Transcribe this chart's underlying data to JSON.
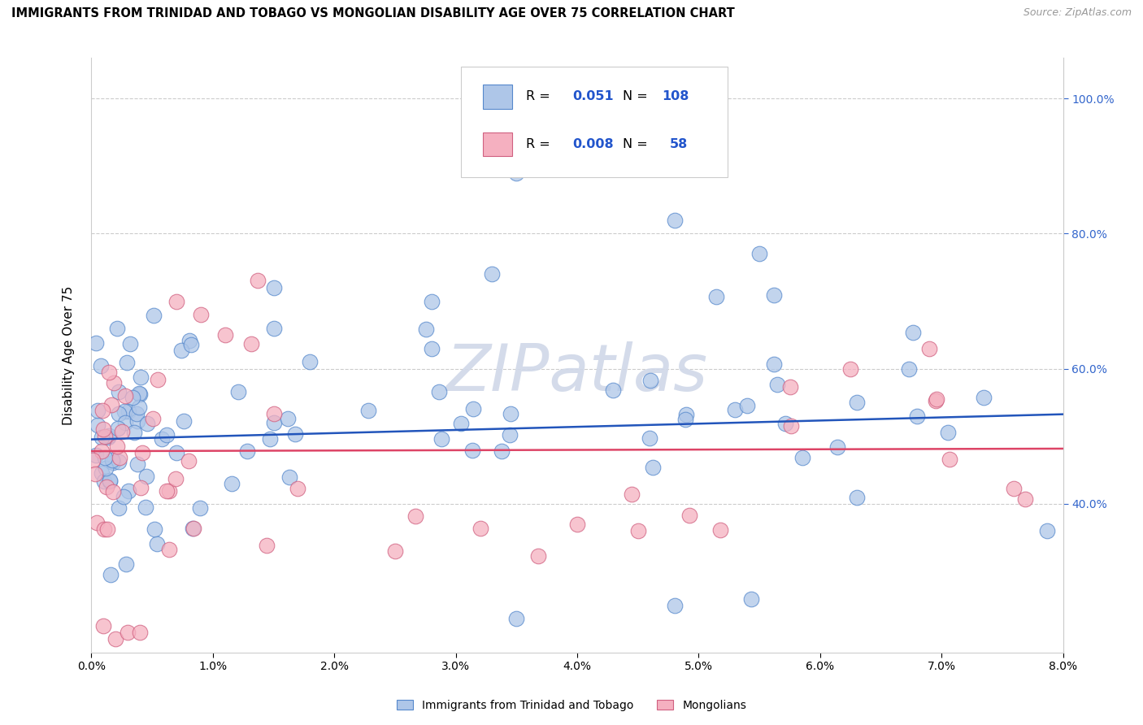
{
  "title": "IMMIGRANTS FROM TRINIDAD AND TOBAGO VS MONGOLIAN DISABILITY AGE OVER 75 CORRELATION CHART",
  "source": "Source: ZipAtlas.com",
  "ylabel": "Disability Age Over 75",
  "xlim": [
    0.0,
    0.08
  ],
  "ylim": [
    0.18,
    1.06
  ],
  "xticks": [
    0.0,
    0.01,
    0.02,
    0.03,
    0.04,
    0.05,
    0.06,
    0.07,
    0.08
  ],
  "xticklabels": [
    "0.0%",
    "1.0%",
    "2.0%",
    "3.0%",
    "4.0%",
    "5.0%",
    "6.0%",
    "7.0%",
    "8.0%"
  ],
  "yticks": [
    0.4,
    0.6,
    0.8,
    1.0
  ],
  "yticklabels_right": [
    "40.0%",
    "60.0%",
    "80.0%",
    "100.0%"
  ],
  "series1_color": "#aec6e8",
  "series1_edge": "#5588cc",
  "series2_color": "#f5b0c0",
  "series2_edge": "#d06080",
  "trend1_color": "#2255bb",
  "trend2_color": "#dd4466",
  "legend_R1": "0.051",
  "legend_N1": "108",
  "legend_R2": "0.008",
  "legend_N2": "58",
  "legend_label1": "Immigrants from Trinidad and Tobago",
  "legend_label2": "Mongolians",
  "watermark": "ZIPatlas",
  "grid_color": "#cccccc",
  "trend1_y0": 0.495,
  "trend1_y1": 0.535,
  "trend2_y0": 0.478,
  "trend2_y1": 0.482
}
